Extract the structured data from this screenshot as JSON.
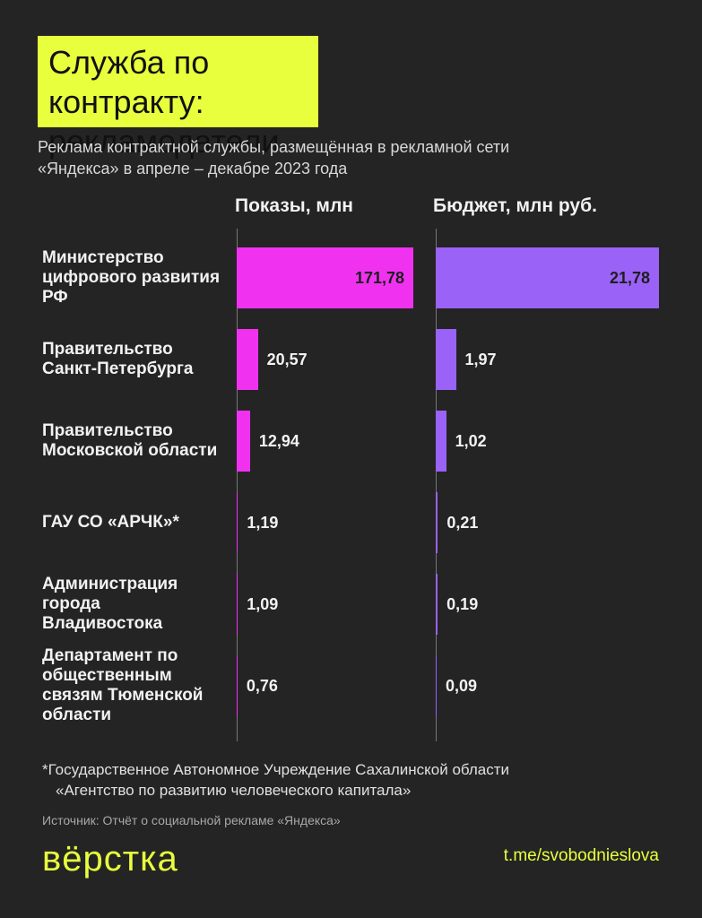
{
  "title": [
    "Служба по контракту:",
    "рекламодатели"
  ],
  "subtitle": [
    "Реклама контрактной службы, размещённая в рекламной сети",
    "«Яндекса» в апреле – декабре 2023 года"
  ],
  "chart_data": [
    {
      "type": "bar",
      "orientation": "horizontal",
      "title": "Показы, млн",
      "categories": [
        "Министерство цифрового развития РФ",
        "Правительство Санкт-Петербурга",
        "Правительство Московской области",
        "ГАУ СО «АРЧК»*",
        "Администрация города Владивостока",
        "Департамент по общественным связям Тюменской области"
      ],
      "values": [
        171.78,
        20.57,
        12.94,
        1.19,
        1.09,
        0.76
      ],
      "value_labels": [
        "171,78",
        "20,57",
        "12,94",
        "1,19",
        "1,09",
        "0,76"
      ],
      "color": "#f032f0"
    },
    {
      "type": "bar",
      "orientation": "horizontal",
      "title": "Бюджет, млн руб.",
      "values": [
        21.78,
        1.97,
        1.02,
        0.21,
        0.19,
        0.09
      ],
      "value_labels": [
        "21,78",
        "1,97",
        "1,02",
        "0,21",
        "0,19",
        "0,09"
      ],
      "color": "#9a62f6"
    }
  ],
  "footnote": [
    "*Государственное Автономное Учреждение Сахалинской области",
    "«Агентство по развитию человеческого капитала»"
  ],
  "source": "Источник: Отчёт о социальной рекламе «Яндекса»",
  "logo": "вёрстка",
  "link": "t.me/svobodnieslova"
}
